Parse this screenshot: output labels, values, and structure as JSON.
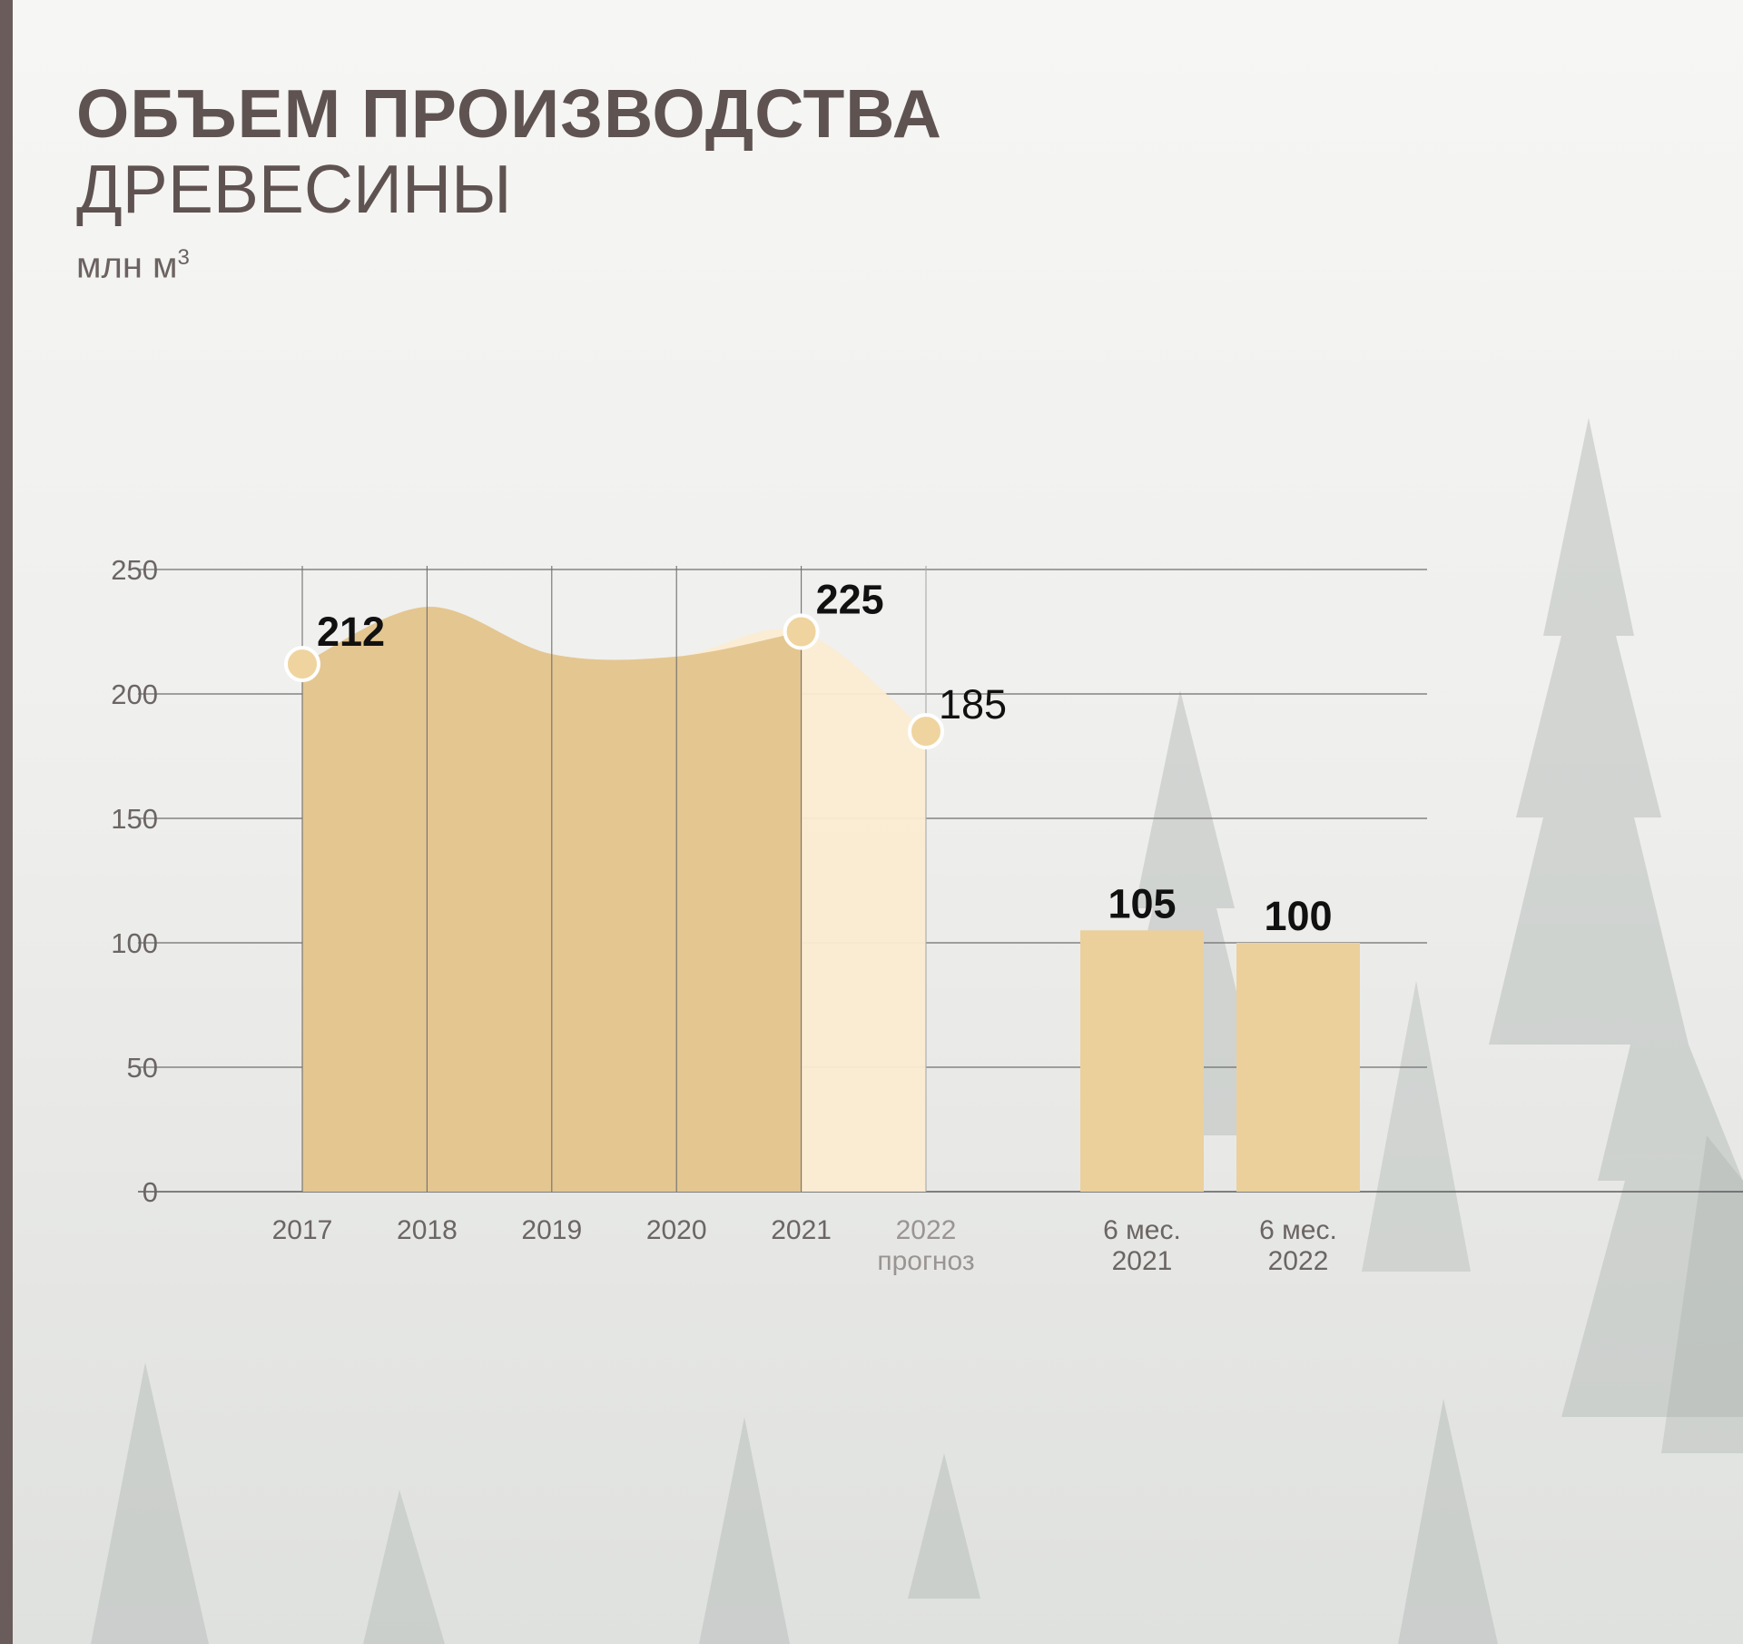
{
  "title": {
    "line1": "ОБЪЕМ ПРОИЗВОДСТВА",
    "line2": "ДРЕВЕСИНЫ",
    "unit": "млн м",
    "unit_sup": "3"
  },
  "colors": {
    "actual_fill": "#e3c48e",
    "forecast_fill": "#fbecd2",
    "half_year_bar": "#ebd09c",
    "marker": "#efd49f",
    "sidebar": "#6a5c5a",
    "title": "#5f5352"
  },
  "chart_data": {
    "type": "area",
    "ylim": [
      0,
      250
    ],
    "yticks": [
      0,
      50,
      100,
      150,
      200,
      250
    ],
    "grid": true,
    "series": [
      {
        "x": [
          "2017",
          "2018",
          "2019",
          "2020",
          "2021",
          "2022"
        ],
        "values": [
          212,
          235,
          216,
          215,
          225,
          185
        ],
        "labels": {
          "2017": "212",
          "2021": "225",
          "2022": "185"
        }
      }
    ],
    "x_sublabels": {
      "2022": "прогноз"
    },
    "bars": [
      {
        "label_top": "6 мес.",
        "label_bottom": "2021",
        "value": 105,
        "value_label": "105"
      },
      {
        "label_top": "6 мес.",
        "label_bottom": "2022",
        "value": 100,
        "value_label": "100"
      }
    ]
  }
}
